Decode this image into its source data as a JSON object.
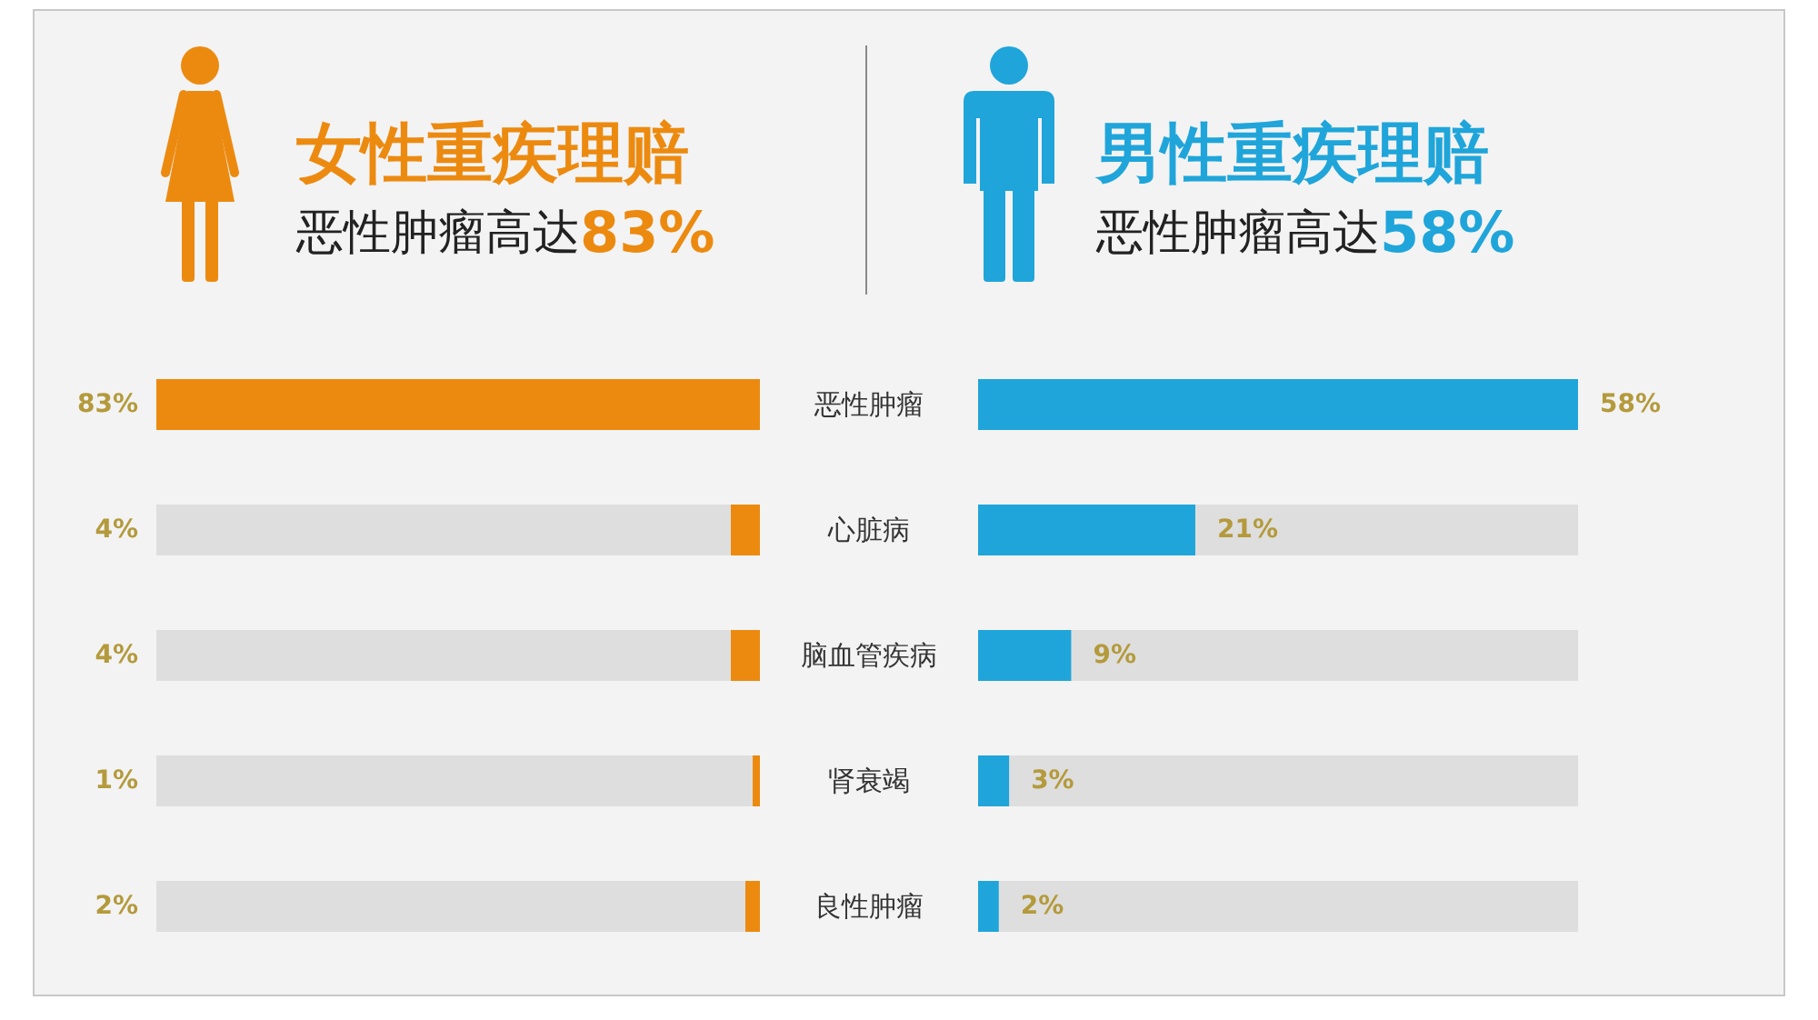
{
  "chart_data": [
    {
      "type": "bar",
      "orientation": "horizontal",
      "title": "女性重疾理赔",
      "subtitle": "恶性肿瘤高达83%",
      "categories": [
        "恶性肿瘤",
        "心脏病",
        "脑血管疾病",
        "肾衰竭",
        "良性肿瘤"
      ],
      "values": [
        83,
        4,
        4,
        1,
        2
      ],
      "value_labels": [
        "83%",
        "4%",
        "4%",
        "1%",
        "2%"
      ],
      "color": "#ec8a10",
      "xlim": [
        83,
        0
      ],
      "tick_labels": "y"
    },
    {
      "type": "bar",
      "orientation": "horizontal",
      "title": "男性重疾理赔",
      "subtitle": "恶性肿瘤高达58%",
      "categories": [
        null,
        null,
        null,
        null,
        null
      ],
      "values": [
        58,
        21,
        9,
        3,
        2
      ],
      "value_labels": [
        "58%",
        "21%",
        "9%",
        "3%",
        "2%"
      ],
      "color": "#1fa5da",
      "xlim": [
        0,
        58
      ],
      "tick_labels": false
    }
  ]
}
